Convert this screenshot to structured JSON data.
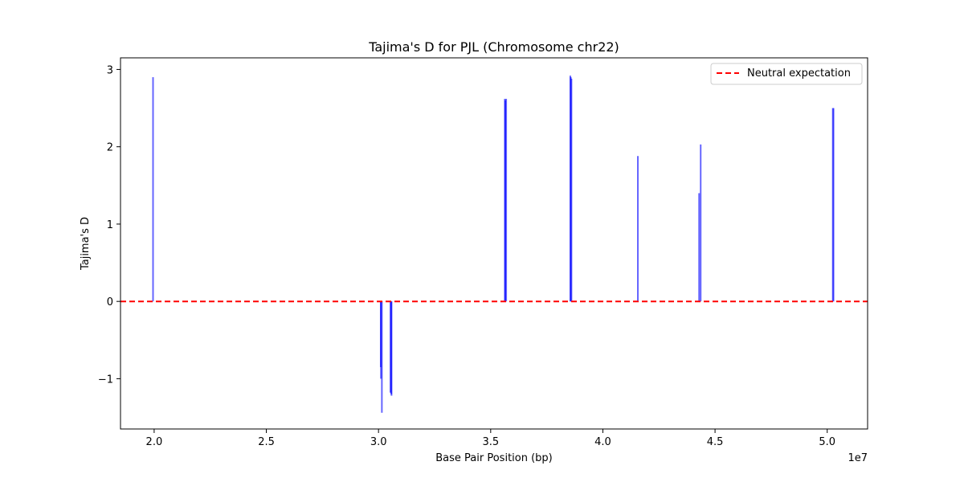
{
  "chart_data": {
    "type": "bar",
    "title": "Tajima's D for PJL (Chromosome chr22)",
    "xlabel": "Base Pair Position (bp)",
    "ylabel": "Tajima's D",
    "x_offset_label": "1e7",
    "xlim": [
      18500000,
      51800000
    ],
    "ylim": [
      -1.65,
      3.15
    ],
    "xticks": [
      20000000,
      25000000,
      30000000,
      35000000,
      40000000,
      45000000,
      50000000
    ],
    "xtick_labels": [
      "2.0",
      "2.5",
      "3.0",
      "3.5",
      "4.0",
      "4.5",
      "5.0"
    ],
    "yticks": [
      -1,
      0,
      1,
      2,
      3
    ],
    "ytick_labels": [
      "−1",
      "0",
      "1",
      "2",
      "3"
    ],
    "grid": false,
    "bar_color": "#0000ff",
    "bar_opacity": 0.6,
    "series": [
      {
        "x": [
          19950000,
          30100000,
          30110000,
          30150000,
          30530000,
          30570000,
          30580000,
          35630000,
          35650000,
          35690000,
          38550000,
          38570000,
          38600000,
          41560000,
          44290000,
          44360000,
          50250000,
          50280000
        ],
        "values": [
          2.9,
          -0.85,
          -1.0,
          -1.44,
          -1.18,
          -1.2,
          -1.22,
          2.62,
          2.6,
          2.62,
          2.92,
          2.9,
          2.88,
          1.88,
          1.4,
          2.03,
          2.5,
          2.5
        ]
      }
    ],
    "reference_line": {
      "y": 0,
      "color": "#ff0000",
      "style": "dashed",
      "label": "Neutral expectation"
    },
    "legend_position": "top-right"
  }
}
